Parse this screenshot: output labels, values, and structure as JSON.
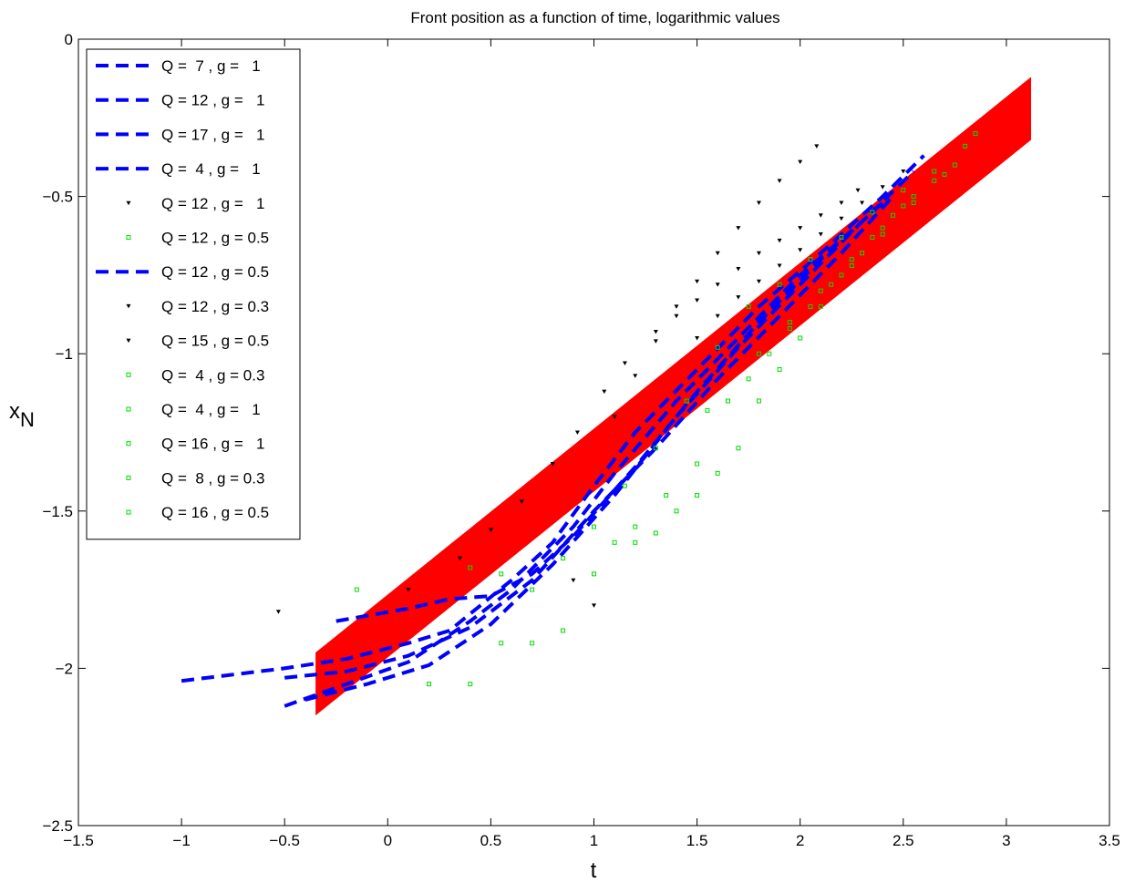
{
  "chart_data": {
    "type": "line",
    "title": "Front position as a function of time, logarithmic values",
    "xlabel": "t",
    "ylabel_main": "x",
    "ylabel_sub": "N",
    "xlim": [
      -1.5,
      3.5
    ],
    "ylim": [
      -2.5,
      0
    ],
    "xticks": [
      -1.5,
      -1,
      -0.5,
      0,
      0.5,
      1,
      1.5,
      2,
      2.5,
      3,
      3.5
    ],
    "yticks": [
      -2.5,
      -2,
      -1.5,
      -1,
      -0.5,
      0
    ],
    "xtick_labels": [
      "−1.5",
      "−1",
      "−0.5",
      "0",
      "0.5",
      "1",
      "1.5",
      "2",
      "2.5",
      "3",
      "3.5"
    ],
    "ytick_labels": [
      "−2.5",
      "−2",
      "−1.5",
      "−1",
      "−0.5",
      "0"
    ],
    "grid": false,
    "legend_position": "top-left",
    "colors": {
      "band": "#ff0000",
      "blue": "#0000ff",
      "black": "#000000",
      "green": "#00dd00"
    },
    "red_band": {
      "color": "#ff0000",
      "half_width_y": 0.1,
      "x": [
        -0.35,
        3.12
      ],
      "y": [
        -2.05,
        -0.22
      ]
    },
    "legend": [
      {
        "label": "Q =  7 , g =   1",
        "style": "dashed",
        "color": "#0000ff"
      },
      {
        "label": "Q = 12 , g =   1",
        "style": "dashed",
        "color": "#0000ff"
      },
      {
        "label": "Q = 17 , g =   1",
        "style": "dashed",
        "color": "#0000ff"
      },
      {
        "label": "Q =  4 , g =   1",
        "style": "dashed",
        "color": "#0000ff"
      },
      {
        "label": "Q = 12 , g =   1",
        "style": "triangle",
        "color": "#000000"
      },
      {
        "label": "Q = 12 , g = 0.5",
        "style": "square",
        "color": "#00dd00"
      },
      {
        "label": "Q = 12 , g = 0.5",
        "style": "dashed",
        "color": "#0000ff"
      },
      {
        "label": "Q = 12 , g = 0.3",
        "style": "triangle",
        "color": "#000000"
      },
      {
        "label": "Q = 15 , g = 0.5",
        "style": "triangle",
        "color": "#000000"
      },
      {
        "label": "Q =  4 , g = 0.3",
        "style": "square",
        "color": "#00dd00"
      },
      {
        "label": "Q =  4 , g =   1",
        "style": "square",
        "color": "#00dd00"
      },
      {
        "label": "Q = 16 , g =   1",
        "style": "square",
        "color": "#00dd00"
      },
      {
        "label": "Q =  8 , g = 0.3",
        "style": "square",
        "color": "#00dd00"
      },
      {
        "label": "Q = 16 , g = 0.5",
        "style": "square",
        "color": "#00dd00"
      }
    ],
    "series": [
      {
        "style": "dashed",
        "color": "#0000ff",
        "x": [
          -1.0,
          -0.5,
          -0.2,
          0.1,
          0.3,
          0.6,
          0.8,
          1.0,
          1.2,
          1.5,
          1.8,
          2.1,
          2.4,
          2.6
        ],
        "y": [
          -2.04,
          -2.0,
          -1.97,
          -1.92,
          -1.88,
          -1.72,
          -1.6,
          -1.42,
          -1.25,
          -1.05,
          -0.85,
          -0.68,
          -0.5,
          -0.37
        ]
      },
      {
        "style": "dashed",
        "color": "#0000ff",
        "x": [
          -0.5,
          -0.2,
          0.1,
          0.4,
          0.6,
          0.9,
          1.1,
          1.4,
          1.7,
          2.0,
          2.3
        ],
        "y": [
          -2.12,
          -2.05,
          -1.98,
          -1.85,
          -1.75,
          -1.55,
          -1.38,
          -1.15,
          -0.95,
          -0.75,
          -0.58
        ]
      },
      {
        "style": "dashed",
        "color": "#0000ff",
        "x": [
          -0.5,
          -0.2,
          0.1,
          0.4,
          0.7,
          1.0,
          1.3,
          1.6,
          1.9,
          2.2,
          2.45
        ],
        "y": [
          -2.03,
          -2.01,
          -1.96,
          -1.87,
          -1.72,
          -1.5,
          -1.3,
          -1.08,
          -0.88,
          -0.68,
          -0.5
        ]
      },
      {
        "style": "dashed",
        "color": "#0000ff",
        "x": [
          -0.25,
          0.1,
          0.3,
          0.5,
          0.7,
          0.9,
          1.2,
          1.5,
          1.8,
          2.1,
          2.4
        ],
        "y": [
          -1.85,
          -1.81,
          -1.78,
          -1.77,
          -1.7,
          -1.58,
          -1.36,
          -1.12,
          -0.9,
          -0.7,
          -0.52
        ]
      },
      {
        "style": "dashed",
        "color": "#0000ff",
        "x": [
          -0.4,
          -0.1,
          0.2,
          0.5,
          0.8,
          1.1,
          1.4,
          1.7,
          2.0,
          2.3,
          2.55
        ],
        "y": [
          -2.1,
          -2.05,
          -1.99,
          -1.86,
          -1.67,
          -1.45,
          -1.2,
          -0.98,
          -0.78,
          -0.58,
          -0.42
        ]
      },
      {
        "style": "triangle",
        "color": "#000000",
        "x": [
          -0.53,
          0.1,
          0.35,
          0.5,
          0.65,
          0.8,
          0.92,
          1.05,
          1.15,
          1.3,
          1.4,
          1.5,
          1.6,
          1.7,
          1.8,
          1.9,
          2.0,
          2.08
        ],
        "y": [
          -1.82,
          -1.75,
          -1.65,
          -1.56,
          -1.47,
          -1.35,
          -1.25,
          -1.12,
          -1.03,
          -0.93,
          -0.85,
          -0.77,
          -0.68,
          -0.6,
          -0.52,
          -0.45,
          -0.39,
          -0.34
        ]
      },
      {
        "style": "triangle",
        "color": "#000000",
        "x": [
          0.9,
          1.0,
          1.1,
          1.2,
          1.3,
          1.4,
          1.5,
          1.6,
          1.7,
          1.8,
          1.9,
          2.0,
          2.1,
          2.2,
          2.28
        ],
        "y": [
          -1.72,
          -1.8,
          -1.2,
          -1.07,
          -0.96,
          -0.88,
          -0.83,
          -0.78,
          -0.73,
          -0.68,
          -0.64,
          -0.6,
          -0.56,
          -0.52,
          -0.48
        ]
      },
      {
        "style": "triangle",
        "color": "#000000",
        "x": [
          1.5,
          1.6,
          1.7,
          1.8,
          1.9,
          2.0,
          2.1,
          2.2,
          2.3,
          2.4,
          2.5
        ],
        "y": [
          -0.95,
          -0.88,
          -0.82,
          -0.77,
          -0.72,
          -0.67,
          -0.62,
          -0.57,
          -0.52,
          -0.47,
          -0.42
        ]
      },
      {
        "style": "square",
        "color": "#00dd00",
        "x": [
          -0.15,
          0.2,
          0.4,
          0.55,
          0.7,
          0.85,
          1.0,
          1.1,
          1.2,
          1.35,
          1.5,
          1.65,
          1.8,
          1.95,
          2.1,
          2.25,
          2.4,
          2.55,
          2.7,
          2.85
        ],
        "y": [
          -1.75,
          -2.05,
          -2.05,
          -1.92,
          -1.92,
          -1.88,
          -1.7,
          -1.6,
          -1.55,
          -1.45,
          -1.35,
          -1.15,
          -1.0,
          -0.9,
          -0.8,
          -0.72,
          -0.62,
          -0.52,
          -0.43,
          -0.3
        ]
      },
      {
        "style": "square",
        "color": "#00dd00",
        "x": [
          0.4,
          0.55,
          0.7,
          0.85,
          1.0,
          1.15,
          1.3,
          1.45,
          1.6,
          1.75,
          1.9,
          2.05,
          2.2,
          2.35,
          2.5,
          2.65,
          2.8
        ],
        "y": [
          -1.68,
          -1.7,
          -1.75,
          -1.65,
          -1.55,
          -1.42,
          -1.3,
          -1.15,
          -0.98,
          -0.85,
          -0.78,
          -0.7,
          -0.63,
          -0.55,
          -0.48,
          -0.42,
          -0.34
        ]
      },
      {
        "style": "square",
        "color": "#00dd00",
        "x": [
          1.2,
          1.3,
          1.4,
          1.5,
          1.6,
          1.7,
          1.8,
          1.9,
          2.0,
          2.1,
          2.2,
          2.3,
          2.4,
          2.5
        ],
        "y": [
          -1.6,
          -1.57,
          -1.5,
          -1.45,
          -1.38,
          -1.3,
          -1.15,
          -1.05,
          -0.95,
          -0.85,
          -0.75,
          -0.68,
          -0.6,
          -0.53
        ]
      },
      {
        "style": "square",
        "color": "#00dd00",
        "x": [
          1.55,
          1.65,
          1.75,
          1.85,
          1.95,
          2.05,
          2.15,
          2.25,
          2.35,
          2.45,
          2.55,
          2.65,
          2.75
        ],
        "y": [
          -1.18,
          -1.15,
          -1.08,
          -1.0,
          -0.92,
          -0.85,
          -0.78,
          -0.7,
          -0.63,
          -0.56,
          -0.5,
          -0.45,
          -0.4
        ]
      }
    ]
  }
}
